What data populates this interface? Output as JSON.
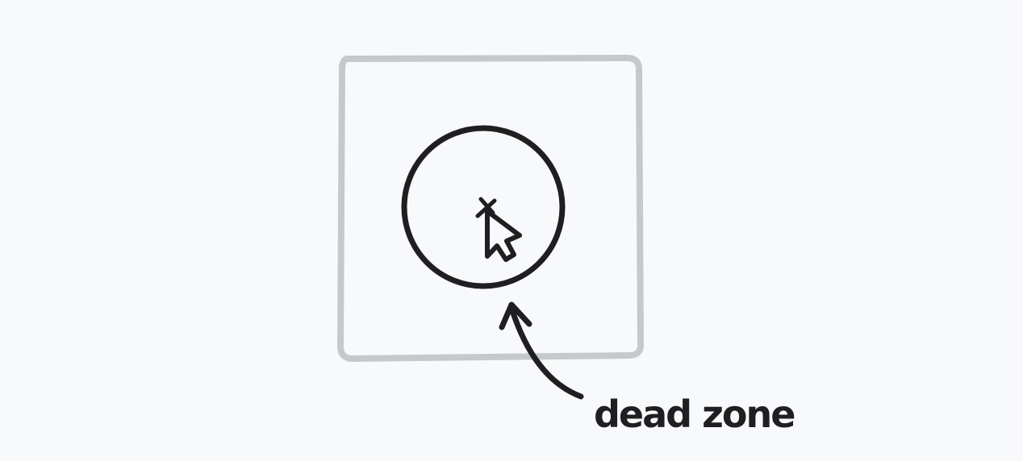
{
  "diagram": {
    "annotation_label": "dead zone",
    "colors": {
      "background": "#f8f9fa",
      "frame_stroke": "#c5c9cd",
      "ink": "#1f1f21"
    },
    "icons": {
      "cursor": "arrow-pointer-icon",
      "crosshair": "crosshair-x-icon"
    }
  }
}
